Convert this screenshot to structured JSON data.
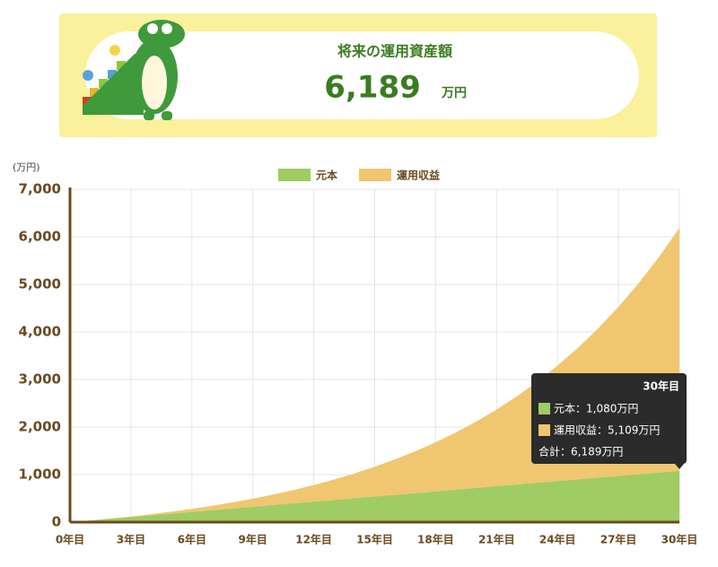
{
  "banner": {
    "title": "将来の運用資産額",
    "amount": "6,189",
    "unit": "万円"
  },
  "chart_data": {
    "type": "stacked_area",
    "y_unit": "(万円)",
    "x": [
      0,
      1,
      2,
      3,
      4,
      5,
      6,
      7,
      8,
      9,
      10,
      11,
      12,
      13,
      14,
      15,
      16,
      17,
      18,
      19,
      20,
      21,
      22,
      23,
      24,
      25,
      26,
      27,
      28,
      29,
      30
    ],
    "series": [
      {
        "name": "元本",
        "color": "#9fcc63",
        "values": [
          0,
          36,
          72,
          108,
          144,
          180,
          216,
          252,
          288,
          324,
          360,
          396,
          432,
          468,
          504,
          540,
          576,
          612,
          648,
          684,
          720,
          756,
          792,
          828,
          864,
          900,
          936,
          972,
          1008,
          1044,
          1080
        ]
      },
      {
        "name": "運用収益",
        "color": "#f0c670",
        "values": [
          0,
          0,
          4,
          11,
          24,
          41,
          63,
          92,
          127,
          170,
          220,
          279,
          349,
          428,
          520,
          625,
          744,
          879,
          1031,
          1203,
          1396,
          1613,
          1855,
          2126,
          2428,
          2765,
          3140,
          3557,
          4020,
          4535,
          5109
        ]
      }
    ],
    "xlim": [
      0,
      30
    ],
    "xticks": [
      {
        "value": 0,
        "label": "0年目"
      },
      {
        "value": 3,
        "label": "3年目"
      },
      {
        "value": 6,
        "label": "6年目"
      },
      {
        "value": 9,
        "label": "9年目"
      },
      {
        "value": 12,
        "label": "12年目"
      },
      {
        "value": 15,
        "label": "15年目"
      },
      {
        "value": 18,
        "label": "18年目"
      },
      {
        "value": 21,
        "label": "21年目"
      },
      {
        "value": 24,
        "label": "24年目"
      },
      {
        "value": 27,
        "label": "27年目"
      },
      {
        "value": 30,
        "label": "30年目"
      }
    ],
    "ylim": [
      0,
      7000
    ],
    "yticks": [
      0,
      {
        "value": 1000,
        "label": "1,000"
      },
      {
        "value": 2000,
        "label": "2,000"
      },
      {
        "value": 3000,
        "label": "3,000"
      },
      {
        "value": 4000,
        "label": "4,000"
      },
      {
        "value": 5000,
        "label": "5,000"
      },
      {
        "value": 6000,
        "label": "6,000"
      },
      {
        "value": 7000,
        "label": "7,000"
      }
    ],
    "grid": true,
    "legend": "top",
    "tooltip": {
      "title": "30年目",
      "lines": [
        "元本：1,080万円",
        "運用収益：5,109万円",
        "合計：6,189万円"
      ]
    }
  }
}
